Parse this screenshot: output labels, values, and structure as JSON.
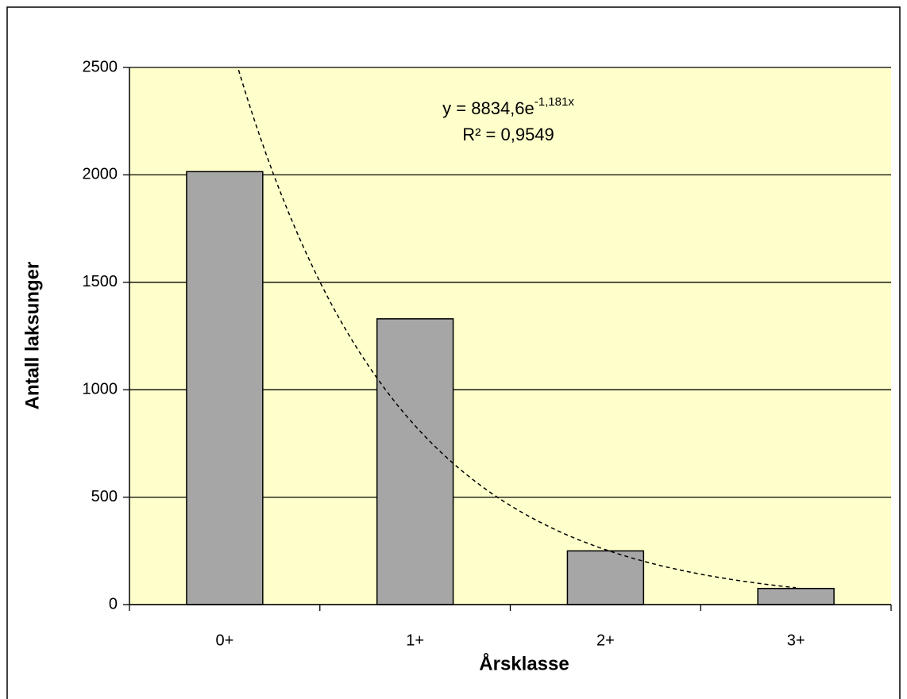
{
  "chart_data": {
    "type": "bar",
    "categories": [
      "0+",
      "1+",
      "2+",
      "3+"
    ],
    "values": [
      2015,
      1330,
      250,
      75
    ],
    "color": "#a6a6a6",
    "ylim": [
      0,
      2500
    ],
    "yticks": [
      0,
      500,
      1000,
      1500,
      2000,
      2500
    ],
    "grid": true,
    "x_label": "Årsklasse",
    "y_label": "Antall laksunger",
    "trendline": {
      "type": "exponential",
      "a": 8834.6,
      "b": -1.181,
      "equation": "y = 8834,6e",
      "equation_exponent": "-1,181x",
      "r_squared": "R² = 0,9549"
    }
  }
}
